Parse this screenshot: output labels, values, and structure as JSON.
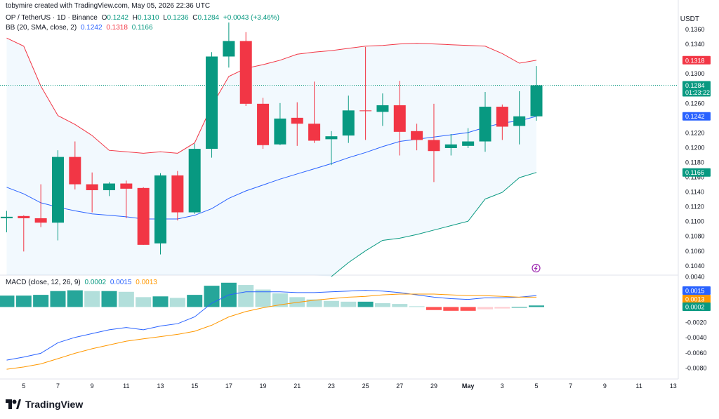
{
  "header": {
    "creator": "tobymire created with TradingView.com, May 05, 2026 22:36 UTC",
    "symbol": "OP / TetherUS · 1D · Binance",
    "o_label": "O",
    "o_val": "0.1242",
    "h_label": "H",
    "h_val": "0.1310",
    "l_label": "L",
    "l_val": "0.1236",
    "c_label": "C",
    "c_val": "0.1284",
    "change": "+0.0043 (+3.46%)",
    "bb_label": "BB (20, SMA, close, 2)",
    "bb_basis": "0.1242",
    "bb_upper": "0.1318",
    "bb_lower": "0.1166",
    "macd_label": "MACD (close, 12, 26, 9)",
    "macd_hist": "0.0002",
    "macd_line": "0.0015",
    "macd_signal": "0.0013"
  },
  "logo": {
    "text": "TradingView"
  },
  "colors": {
    "up": "#089981",
    "down": "#f23645",
    "bb_upper": "#f23645",
    "bb_lower": "#089981",
    "bb_basis": "#2962ff",
    "macd_line": "#2962ff",
    "signal_line": "#ff9800"
  },
  "chart_data": [
    {
      "type": "candlestick",
      "title": "OP / TetherUS · 1D · Binance",
      "y_unit": "USDT",
      "ylim": [
        0.1027,
        0.139
      ],
      "y_ticks": [
        "0.1360",
        "0.1340",
        "0.1320",
        "0.1300",
        "0.1280",
        "0.1260",
        "0.1240",
        "0.1220",
        "0.1200",
        "0.1180",
        "0.1160",
        "0.1140",
        "0.1120",
        "0.1100",
        "0.1080",
        "0.1060",
        "0.1040"
      ],
      "x_ticks": [
        {
          "label": "5",
          "day": 5
        },
        {
          "label": "7",
          "day": 7
        },
        {
          "label": "9",
          "day": 9
        },
        {
          "label": "11",
          "day": 11
        },
        {
          "label": "13",
          "day": 13
        },
        {
          "label": "15",
          "day": 15
        },
        {
          "label": "17",
          "day": 17
        },
        {
          "label": "19",
          "day": 19
        },
        {
          "label": "21",
          "day": 21
        },
        {
          "label": "23",
          "day": 23
        },
        {
          "label": "25",
          "day": 25
        },
        {
          "label": "27",
          "day": 27
        },
        {
          "label": "29",
          "day": 29
        },
        {
          "label": "May",
          "day": 31
        },
        {
          "label": "3",
          "day": 33
        },
        {
          "label": "5",
          "day": 35
        },
        {
          "label": "7",
          "day": 37
        },
        {
          "label": "9",
          "day": 39
        },
        {
          "label": "11",
          "day": 41
        },
        {
          "label": "13",
          "day": 43
        }
      ],
      "candles": [
        {
          "day": 4,
          "o": 0.1104,
          "h": 0.1114,
          "l": 0.1085,
          "c": 0.1106
        },
        {
          "day": 5,
          "o": 0.1107,
          "h": 0.1108,
          "l": 0.1059,
          "c": 0.1104
        },
        {
          "day": 6,
          "o": 0.1104,
          "h": 0.115,
          "l": 0.1092,
          "c": 0.1098
        },
        {
          "day": 7,
          "o": 0.1098,
          "h": 0.1196,
          "l": 0.1074,
          "c": 0.1187
        },
        {
          "day": 8,
          "o": 0.1187,
          "h": 0.1208,
          "l": 0.1143,
          "c": 0.115
        },
        {
          "day": 9,
          "o": 0.115,
          "h": 0.1166,
          "l": 0.1112,
          "c": 0.1142
        },
        {
          "day": 10,
          "o": 0.1142,
          "h": 0.1153,
          "l": 0.1134,
          "c": 0.1151
        },
        {
          "day": 11,
          "o": 0.1151,
          "h": 0.1155,
          "l": 0.1104,
          "c": 0.1144
        },
        {
          "day": 12,
          "o": 0.1145,
          "h": 0.1146,
          "l": 0.1068,
          "c": 0.1068
        },
        {
          "day": 13,
          "o": 0.107,
          "h": 0.1165,
          "l": 0.1055,
          "c": 0.1162
        },
        {
          "day": 14,
          "o": 0.1162,
          "h": 0.1168,
          "l": 0.1101,
          "c": 0.1112
        },
        {
          "day": 15,
          "o": 0.1112,
          "h": 0.1205,
          "l": 0.111,
          "c": 0.1198
        },
        {
          "day": 16,
          "o": 0.1198,
          "h": 0.1329,
          "l": 0.1186,
          "c": 0.1323
        },
        {
          "day": 17,
          "o": 0.1323,
          "h": 0.1369,
          "l": 0.1308,
          "c": 0.1344
        },
        {
          "day": 18,
          "o": 0.1344,
          "h": 0.1356,
          "l": 0.1256,
          "c": 0.1259
        },
        {
          "day": 19,
          "o": 0.1259,
          "h": 0.1267,
          "l": 0.1198,
          "c": 0.1203
        },
        {
          "day": 20,
          "o": 0.1204,
          "h": 0.126,
          "l": 0.1203,
          "c": 0.1239
        },
        {
          "day": 21,
          "o": 0.124,
          "h": 0.1261,
          "l": 0.1202,
          "c": 0.1232
        },
        {
          "day": 22,
          "o": 0.1232,
          "h": 0.1289,
          "l": 0.1206,
          "c": 0.1209
        },
        {
          "day": 23,
          "o": 0.1211,
          "h": 0.1222,
          "l": 0.1176,
          "c": 0.1215
        },
        {
          "day": 24,
          "o": 0.1216,
          "h": 0.127,
          "l": 0.1206,
          "c": 0.125
        },
        {
          "day": 25,
          "o": 0.125,
          "h": 0.1336,
          "l": 0.121,
          "c": 0.1249
        },
        {
          "day": 26,
          "o": 0.1248,
          "h": 0.1273,
          "l": 0.1229,
          "c": 0.1257
        },
        {
          "day": 27,
          "o": 0.1257,
          "h": 0.129,
          "l": 0.1189,
          "c": 0.1221
        },
        {
          "day": 28,
          "o": 0.1222,
          "h": 0.1232,
          "l": 0.1196,
          "c": 0.121
        },
        {
          "day": 29,
          "o": 0.121,
          "h": 0.1259,
          "l": 0.1153,
          "c": 0.1195
        },
        {
          "day": 30,
          "o": 0.1199,
          "h": 0.1218,
          "l": 0.1189,
          "c": 0.1204
        },
        {
          "day": 31,
          "o": 0.1202,
          "h": 0.1226,
          "l": 0.1199,
          "c": 0.1208
        },
        {
          "day": 32,
          "o": 0.1208,
          "h": 0.1275,
          "l": 0.1194,
          "c": 0.1255
        },
        {
          "day": 33,
          "o": 0.1255,
          "h": 0.1258,
          "l": 0.121,
          "c": 0.1228
        },
        {
          "day": 34,
          "o": 0.1229,
          "h": 0.1276,
          "l": 0.1204,
          "c": 0.1242
        },
        {
          "day": 35,
          "o": 0.1242,
          "h": 0.131,
          "l": 0.1236,
          "c": 0.1284
        }
      ],
      "bb_upper": [
        {
          "day": 4,
          "v": 0.1348
        },
        {
          "day": 5,
          "v": 0.1337
        },
        {
          "day": 6,
          "v": 0.1283
        },
        {
          "day": 7,
          "v": 0.1243
        },
        {
          "day": 8,
          "v": 0.1231
        },
        {
          "day": 9,
          "v": 0.1216
        },
        {
          "day": 10,
          "v": 0.1196
        },
        {
          "day": 11,
          "v": 0.1194
        },
        {
          "day": 12,
          "v": 0.1192
        },
        {
          "day": 13,
          "v": 0.1194
        },
        {
          "day": 14,
          "v": 0.1192
        },
        {
          "day": 15,
          "v": 0.1206
        },
        {
          "day": 16,
          "v": 0.1256
        },
        {
          "day": 17,
          "v": 0.1296
        },
        {
          "day": 18,
          "v": 0.1307
        },
        {
          "day": 19,
          "v": 0.1312
        },
        {
          "day": 20,
          "v": 0.1318
        },
        {
          "day": 21,
          "v": 0.1326
        },
        {
          "day": 22,
          "v": 0.1329
        },
        {
          "day": 23,
          "v": 0.1331
        },
        {
          "day": 24,
          "v": 0.1334
        },
        {
          "day": 25,
          "v": 0.1337
        },
        {
          "day": 26,
          "v": 0.1338
        },
        {
          "day": 27,
          "v": 0.134
        },
        {
          "day": 28,
          "v": 0.1341
        },
        {
          "day": 29,
          "v": 0.134
        },
        {
          "day": 30,
          "v": 0.1339
        },
        {
          "day": 31,
          "v": 0.1338
        },
        {
          "day": 32,
          "v": 0.1337
        },
        {
          "day": 33,
          "v": 0.1327
        },
        {
          "day": 34,
          "v": 0.1314
        },
        {
          "day": 35,
          "v": 0.1318
        }
      ],
      "bb_basis": [
        {
          "day": 4,
          "v": 0.1146
        },
        {
          "day": 5,
          "v": 0.1137
        },
        {
          "day": 6,
          "v": 0.1125
        },
        {
          "day": 7,
          "v": 0.1119
        },
        {
          "day": 8,
          "v": 0.1114
        },
        {
          "day": 9,
          "v": 0.111
        },
        {
          "day": 10,
          "v": 0.1108
        },
        {
          "day": 11,
          "v": 0.1106
        },
        {
          "day": 12,
          "v": 0.1103
        },
        {
          "day": 13,
          "v": 0.1103
        },
        {
          "day": 14,
          "v": 0.1103
        },
        {
          "day": 15,
          "v": 0.1108
        },
        {
          "day": 16,
          "v": 0.1117
        },
        {
          "day": 17,
          "v": 0.1131
        },
        {
          "day": 18,
          "v": 0.1141
        },
        {
          "day": 19,
          "v": 0.1149
        },
        {
          "day": 20,
          "v": 0.1157
        },
        {
          "day": 21,
          "v": 0.1164
        },
        {
          "day": 22,
          "v": 0.1171
        },
        {
          "day": 23,
          "v": 0.1178
        },
        {
          "day": 24,
          "v": 0.1186
        },
        {
          "day": 25,
          "v": 0.1193
        },
        {
          "day": 26,
          "v": 0.1201
        },
        {
          "day": 27,
          "v": 0.1208
        },
        {
          "day": 28,
          "v": 0.1211
        },
        {
          "day": 29,
          "v": 0.1214
        },
        {
          "day": 30,
          "v": 0.1217
        },
        {
          "day": 31,
          "v": 0.122
        },
        {
          "day": 32,
          "v": 0.1227
        },
        {
          "day": 33,
          "v": 0.1233
        },
        {
          "day": 34,
          "v": 0.1236
        },
        {
          "day": 35,
          "v": 0.1242
        }
      ],
      "bb_lower": [
        {
          "day": 23,
          "v": 0.1025
        },
        {
          "day": 24,
          "v": 0.1044
        },
        {
          "day": 25,
          "v": 0.106
        },
        {
          "day": 26,
          "v": 0.1074
        },
        {
          "day": 27,
          "v": 0.1077
        },
        {
          "day": 28,
          "v": 0.1082
        },
        {
          "day": 29,
          "v": 0.1088
        },
        {
          "day": 30,
          "v": 0.1094
        },
        {
          "day": 31,
          "v": 0.11
        },
        {
          "day": 32,
          "v": 0.113
        },
        {
          "day": 33,
          "v": 0.1139
        },
        {
          "day": 34,
          "v": 0.1159
        },
        {
          "day": 35,
          "v": 0.1166
        }
      ],
      "price_labels": [
        {
          "text": "0.1318",
          "value": 0.1318,
          "color": "#f23645"
        },
        {
          "text": "0.1284",
          "value": 0.1284,
          "color": "#089981",
          "sub": "01:23:22"
        },
        {
          "text": "0.1242",
          "value": 0.1242,
          "color": "#2962ff"
        },
        {
          "text": "0.1166",
          "value": 0.1166,
          "color": "#089981"
        }
      ]
    },
    {
      "type": "macd",
      "title": "MACD (close, 12, 26, 9)",
      "ylim": [
        -0.0093,
        0.0042
      ],
      "y_ticks": [
        "0.0040",
        "-0.0020",
        "-0.0040",
        "-0.0060",
        "-0.0080"
      ],
      "histogram": [
        {
          "day": 4,
          "v": 0.0015
        },
        {
          "day": 5,
          "v": 0.0015
        },
        {
          "day": 6,
          "v": 0.0016
        },
        {
          "day": 7,
          "v": 0.0021
        },
        {
          "day": 8,
          "v": 0.0022
        },
        {
          "day": 9,
          "v": 0.0021
        },
        {
          "day": 10,
          "v": 0.0021
        },
        {
          "day": 11,
          "v": 0.002
        },
        {
          "day": 12,
          "v": 0.0013
        },
        {
          "day": 13,
          "v": 0.0014
        },
        {
          "day": 14,
          "v": 0.0012
        },
        {
          "day": 15,
          "v": 0.0016
        },
        {
          "day": 16,
          "v": 0.0028
        },
        {
          "day": 17,
          "v": 0.0032
        },
        {
          "day": 18,
          "v": 0.0029
        },
        {
          "day": 19,
          "v": 0.0023
        },
        {
          "day": 20,
          "v": 0.0018
        },
        {
          "day": 21,
          "v": 0.0013
        },
        {
          "day": 22,
          "v": 0.001
        },
        {
          "day": 23,
          "v": 0.0008
        },
        {
          "day": 24,
          "v": 0.0007
        },
        {
          "day": 25,
          "v": 0.0007
        },
        {
          "day": 26,
          "v": 0.0005
        },
        {
          "day": 27,
          "v": 0.0004
        },
        {
          "day": 28,
          "v": 0.0001
        },
        {
          "day": 29,
          "v": -0.0004
        },
        {
          "day": 30,
          "v": -0.0005
        },
        {
          "day": 31,
          "v": -0.0005
        },
        {
          "day": 32,
          "v": -0.0003
        },
        {
          "day": 33,
          "v": -0.0002
        },
        {
          "day": 34,
          "v": 0.0
        },
        {
          "day": 35,
          "v": 0.0002
        }
      ],
      "macd_line": [
        {
          "day": 4,
          "v": -0.007
        },
        {
          "day": 5,
          "v": -0.0066
        },
        {
          "day": 6,
          "v": -0.0061
        },
        {
          "day": 7,
          "v": -0.0047
        },
        {
          "day": 8,
          "v": -0.004
        },
        {
          "day": 9,
          "v": -0.0035
        },
        {
          "day": 10,
          "v": -0.003
        },
        {
          "day": 11,
          "v": -0.0027
        },
        {
          "day": 12,
          "v": -0.003
        },
        {
          "day": 13,
          "v": -0.0025
        },
        {
          "day": 14,
          "v": -0.0022
        },
        {
          "day": 15,
          "v": -0.0013
        },
        {
          "day": 16,
          "v": 0.0005
        },
        {
          "day": 17,
          "v": 0.0016
        },
        {
          "day": 18,
          "v": 0.002
        },
        {
          "day": 19,
          "v": 0.002
        },
        {
          "day": 20,
          "v": 0.002
        },
        {
          "day": 21,
          "v": 0.0019
        },
        {
          "day": 22,
          "v": 0.0019
        },
        {
          "day": 23,
          "v": 0.002
        },
        {
          "day": 24,
          "v": 0.0021
        },
        {
          "day": 25,
          "v": 0.0022
        },
        {
          "day": 26,
          "v": 0.0021
        },
        {
          "day": 27,
          "v": 0.0019
        },
        {
          "day": 28,
          "v": 0.0016
        },
        {
          "day": 29,
          "v": 0.0013
        },
        {
          "day": 30,
          "v": 0.0011
        },
        {
          "day": 31,
          "v": 0.001
        },
        {
          "day": 32,
          "v": 0.0012
        },
        {
          "day": 33,
          "v": 0.0012
        },
        {
          "day": 34,
          "v": 0.0013
        },
        {
          "day": 35,
          "v": 0.0015
        }
      ],
      "signal_line": [
        {
          "day": 4,
          "v": -0.0082
        },
        {
          "day": 5,
          "v": -0.0079
        },
        {
          "day": 6,
          "v": -0.0075
        },
        {
          "day": 7,
          "v": -0.0068
        },
        {
          "day": 8,
          "v": -0.0061
        },
        {
          "day": 9,
          "v": -0.0055
        },
        {
          "day": 10,
          "v": -0.005
        },
        {
          "day": 11,
          "v": -0.0045
        },
        {
          "day": 12,
          "v": -0.0042
        },
        {
          "day": 13,
          "v": -0.0039
        },
        {
          "day": 14,
          "v": -0.0036
        },
        {
          "day": 15,
          "v": -0.0032
        },
        {
          "day": 16,
          "v": -0.0024
        },
        {
          "day": 17,
          "v": -0.0013
        },
        {
          "day": 18,
          "v": -0.0006
        },
        {
          "day": 19,
          "v": -0.0001
        },
        {
          "day": 20,
          "v": 0.0003
        },
        {
          "day": 21,
          "v": 0.0006
        },
        {
          "day": 22,
          "v": 0.0009
        },
        {
          "day": 23,
          "v": 0.0011
        },
        {
          "day": 24,
          "v": 0.0013
        },
        {
          "day": 25,
          "v": 0.0014
        },
        {
          "day": 26,
          "v": 0.0016
        },
        {
          "day": 27,
          "v": 0.0017
        },
        {
          "day": 28,
          "v": 0.0017
        },
        {
          "day": 29,
          "v": 0.0017
        },
        {
          "day": 30,
          "v": 0.0016
        },
        {
          "day": 31,
          "v": 0.0015
        },
        {
          "day": 32,
          "v": 0.0015
        },
        {
          "day": 33,
          "v": 0.0014
        },
        {
          "day": 34,
          "v": 0.0013
        },
        {
          "day": 35,
          "v": 0.0013
        }
      ],
      "value_labels": [
        {
          "text": "0.0015",
          "value": 0.0015,
          "color": "#2962ff"
        },
        {
          "text": "0.0013",
          "value": 0.0013,
          "color": "#ff9800"
        },
        {
          "text": "0.0002",
          "value": 0.0002,
          "color": "#089981"
        }
      ]
    }
  ]
}
